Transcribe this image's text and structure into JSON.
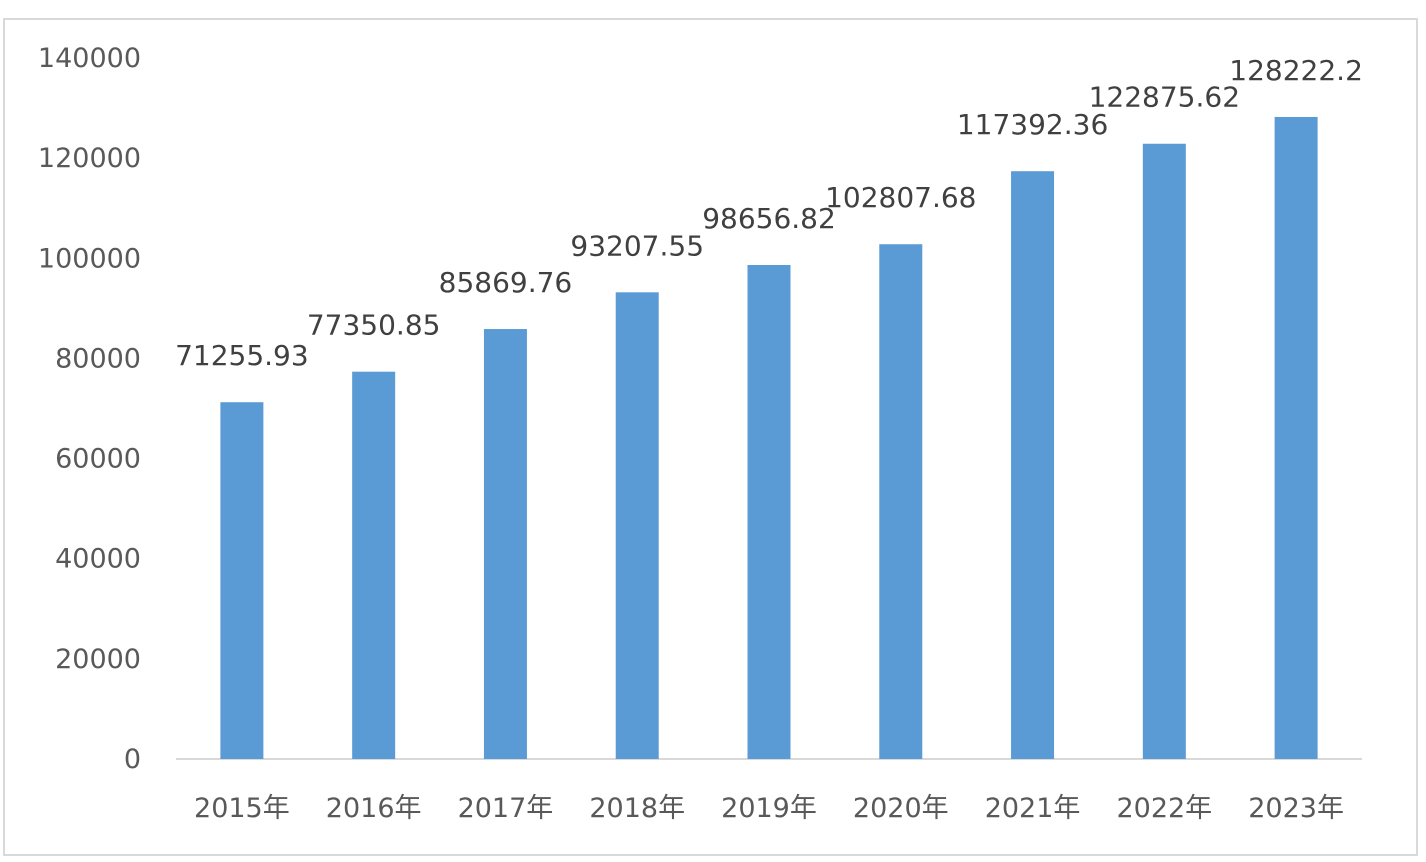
{
  "colors": {
    "bar": "#5b9bd5",
    "axis_line": "#d9d9d9",
    "tick_text": "#595959",
    "data_label_text": "#404040",
    "border": "#d9d9d9"
  },
  "chart_data": {
    "type": "bar",
    "categories": [
      "2015年",
      "2016年",
      "2017年",
      "2018年",
      "2019年",
      "2020年",
      "2021年",
      "2022年",
      "2023年"
    ],
    "values": [
      71255.93,
      77350.85,
      85869.76,
      93207.55,
      98656.82,
      102807.68,
      117392.36,
      122875.62,
      128222.2
    ],
    "data_labels": [
      "71255.93",
      "77350.85",
      "85869.76",
      "93207.55",
      "98656.82",
      "102807.68",
      "117392.36",
      "122875.62",
      "128222.2"
    ],
    "ylim": [
      0,
      140000
    ],
    "yticks": [
      0,
      20000,
      40000,
      60000,
      80000,
      100000,
      120000,
      140000
    ],
    "ytick_labels": [
      "0",
      "20000",
      "40000",
      "60000",
      "80000",
      "100000",
      "120000",
      "140000"
    ],
    "grid": false,
    "legend": "none",
    "title": "",
    "xlabel": "",
    "ylabel": ""
  }
}
